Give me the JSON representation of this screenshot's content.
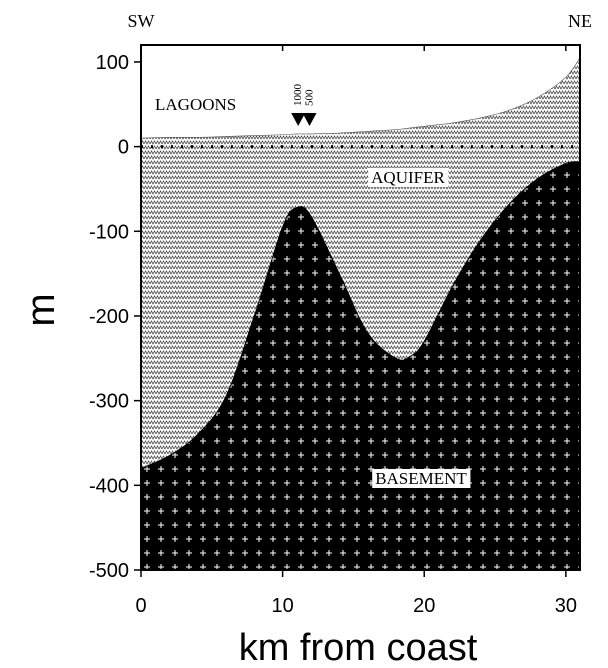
{
  "chart_data": {
    "type": "area",
    "corner_left": "SW",
    "corner_right": "NE",
    "x_label": "km from coast",
    "y_label": "m",
    "annotation": "LAGOONS",
    "x": [
      0,
      2,
      4,
      6,
      8,
      10,
      11,
      12,
      14,
      16,
      18,
      19,
      20,
      22,
      24,
      26,
      28,
      30,
      31
    ],
    "series": [
      {
        "name": "AQUIFER",
        "values": [
          10,
          11,
          11,
          12,
          13,
          14,
          15,
          15,
          16,
          18,
          20,
          22,
          24,
          28,
          34,
          43,
          58,
          82,
          105
        ]
      },
      {
        "name": "BASEMENT",
        "values": [
          -380,
          -365,
          -340,
          -295,
          -200,
          -95,
          -72,
          -82,
          -150,
          -220,
          -250,
          -248,
          -230,
          -165,
          -110,
          -68,
          -38,
          -20,
          -18
        ]
      }
    ],
    "markers": {
      "x": [
        11.1,
        11.9
      ],
      "labels": [
        "1000",
        "500"
      ]
    },
    "sea_level": 0,
    "xlim": [
      0,
      31
    ],
    "ylim": [
      -500,
      120
    ],
    "xticks": [
      0,
      10,
      20,
      30
    ],
    "yticks": [
      -500,
      -400,
      -300,
      -200,
      -100,
      0,
      100
    ]
  }
}
